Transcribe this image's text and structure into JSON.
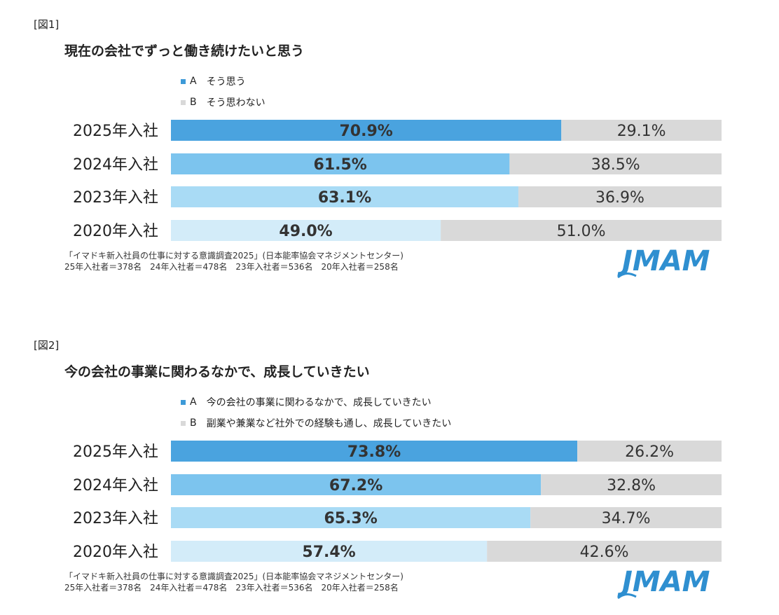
{
  "colors": {
    "a_by_year": [
      "#4aa3df",
      "#7cc4ee",
      "#a9dbf5",
      "#d3ecf9"
    ],
    "a_legend": "#3d9ad8",
    "b": "#d9d9d9",
    "logo": "#2f8fd0"
  },
  "logo_text": "JMAM",
  "figures": [
    {
      "label": "[図1]",
      "title": "現在の会社でずっと働き続けたいと思う",
      "legend_a_key": "A",
      "legend_a": "そう思う",
      "legend_b_key": "B",
      "legend_b": "そう思わない",
      "source_line1": "「イマドキ新入社員の仕事に対する意識調査2025」(日本能率協会マネジメントセンター)",
      "source_line2": "25年入社者＝378名　24年入社者＝478名　23年入社者＝536名　20年入社者＝258名"
    },
    {
      "label": "[図2]",
      "title": "今の会社の事業に関わるなかで、成長していきたい",
      "legend_a_key": "A",
      "legend_a": "今の会社の事業に関わるなかで、成長していきたい",
      "legend_b_key": "B",
      "legend_b": "副業や兼業など社外での経験も通し、成長していきたい",
      "source_line1": "「イマドキ新入社員の仕事に対する意識調査2025」(日本能率協会マネジメントセンター)",
      "source_line2": "25年入社者＝378名　24年入社者＝478名　23年入社者＝536名　20年入社者＝258名"
    }
  ],
  "chart_data": [
    {
      "type": "bar",
      "stacked": true,
      "orientation": "horizontal",
      "title": "現在の会社でずっと働き続けたいと思う",
      "categories": [
        "2025年入社",
        "2024年入社",
        "2023年入社",
        "2020年入社"
      ],
      "series": [
        {
          "name": "そう思う",
          "values": [
            70.9,
            61.5,
            63.1,
            49.0
          ],
          "labels": [
            "70.9%",
            "61.5%",
            "63.1%",
            "49.0%"
          ]
        },
        {
          "name": "そう思わない",
          "values": [
            29.1,
            38.5,
            36.9,
            51.0
          ],
          "labels": [
            "29.1%",
            "38.5%",
            "36.9%",
            "51.0%"
          ]
        }
      ],
      "xlim": [
        0,
        100
      ],
      "legend": "top-left"
    },
    {
      "type": "bar",
      "stacked": true,
      "orientation": "horizontal",
      "title": "今の会社の事業に関わるなかで、成長していきたい",
      "categories": [
        "2025年入社",
        "2024年入社",
        "2023年入社",
        "2020年入社"
      ],
      "series": [
        {
          "name": "今の会社の事業に関わるなかで、成長していきたい",
          "values": [
            73.8,
            67.2,
            65.3,
            57.4
          ],
          "labels": [
            "73.8%",
            "67.2%",
            "65.3%",
            "57.4%"
          ]
        },
        {
          "name": "副業や兼業など社外での経験も通し、成長していきたい",
          "values": [
            26.2,
            32.8,
            34.7,
            42.6
          ],
          "labels": [
            "26.2%",
            "32.8%",
            "34.7%",
            "42.6%"
          ]
        }
      ],
      "xlim": [
        0,
        100
      ],
      "legend": "top-left"
    }
  ]
}
